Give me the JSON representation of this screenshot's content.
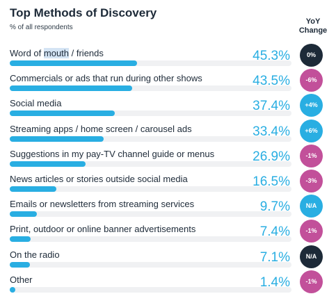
{
  "chart_data": {
    "type": "bar",
    "orientation": "horizontal",
    "title": "Top Methods of Discovery",
    "subtitle": "% of all respondents",
    "yoy_header": [
      "YoY",
      "Change"
    ],
    "xlim": [
      0,
      100
    ],
    "unit": "%",
    "categories": [
      "Word of mouth / friends",
      "Commercials or ads that run during other shows",
      "Social media",
      "Streaming apps / home screen / carousel ads",
      "Suggestions in my pay-TV channel guide or menus",
      "News articles or stories outside social media",
      "Emails or newsletters from streaming services",
      "Print, outdoor or online banner advertisements",
      "On the radio",
      "Other"
    ],
    "values": [
      45.3,
      43.5,
      37.4,
      33.4,
      26.9,
      16.5,
      9.7,
      7.4,
      7.1,
      1.4
    ],
    "value_labels": [
      "45.3%",
      "43.5%",
      "37.4%",
      "33.4%",
      "26.9%",
      "16.5%",
      "9.7%",
      "7.4%",
      "7.1%",
      "1.4%"
    ],
    "yoy_change": [
      "0%",
      "-6%",
      "+4%",
      "+6%",
      "-1%",
      "-3%",
      "N/A",
      "-1%",
      "N/A",
      "-1%"
    ],
    "highlighted_text": "mouth",
    "colors": {
      "bar": "#29aee2",
      "track": "#f0f1f3",
      "value_text": "#29aee2",
      "badge_neutral": "#1d2a38",
      "badge_negative": "#c2509a",
      "badge_positive": "#29aee2"
    }
  }
}
